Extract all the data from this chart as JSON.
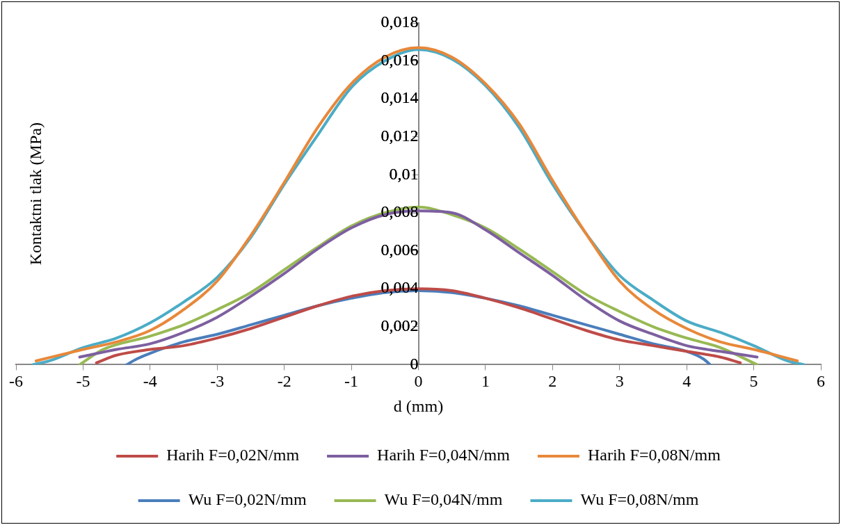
{
  "chart_data": {
    "type": "line",
    "xlabel": "d (mm)",
    "ylabel": "Kontaktni tlak (MPa)",
    "xlim": [
      -6,
      6
    ],
    "xticks": [
      -6,
      -5,
      -4,
      -3,
      -2,
      -1,
      0,
      1,
      2,
      3,
      4,
      5,
      6
    ],
    "ylim": [
      0,
      0.018
    ],
    "yticks": [
      {
        "value": 0,
        "label": "0"
      },
      {
        "value": 0.002,
        "label": "0,002"
      },
      {
        "value": 0.004,
        "label": "0,004"
      },
      {
        "value": 0.006,
        "label": "0,006"
      },
      {
        "value": 0.008,
        "label": "0,008"
      },
      {
        "value": 0.01,
        "label": "0,01"
      },
      {
        "value": 0.012,
        "label": "0,012"
      },
      {
        "value": 0.014,
        "label": "0,014"
      },
      {
        "value": 0.016,
        "label": "0,016"
      },
      {
        "value": 0.018,
        "label": "0,018"
      }
    ],
    "grid": false,
    "legend": "bottom",
    "marker": "none",
    "line_style": "solid",
    "series": [
      {
        "name": "Harih F=0,02N/mm",
        "color": "#be4b48",
        "x": [
          -4.8,
          -4.5,
          -4,
          -3.5,
          -3,
          -2.5,
          -2,
          -1.5,
          -1,
          -0.5,
          0,
          0.5,
          1,
          1.5,
          2,
          2.5,
          3,
          3.5,
          4,
          4.5,
          4.8
        ],
        "values": [
          0.0001,
          0.0005,
          0.0008,
          0.001,
          0.0014,
          0.0019,
          0.0025,
          0.0031,
          0.0036,
          0.0039,
          0.004,
          0.0039,
          0.0035,
          0.003,
          0.0024,
          0.0018,
          0.0013,
          0.001,
          0.0007,
          0.0004,
          0.0001
        ]
      },
      {
        "name": "Harih F=0,04N/mm",
        "color": "#7d5fa0",
        "x": [
          -5.05,
          -4.5,
          -4,
          -3.5,
          -3,
          -2.5,
          -2,
          -1.5,
          -1,
          -0.5,
          0,
          0.5,
          1,
          1.5,
          2,
          2.5,
          3,
          3.5,
          4,
          4.5,
          5.05
        ],
        "values": [
          0.0004,
          0.0008,
          0.0011,
          0.0017,
          0.0025,
          0.0036,
          0.0048,
          0.0061,
          0.0072,
          0.0079,
          0.0081,
          0.008,
          0.0071,
          0.0059,
          0.0047,
          0.0034,
          0.0023,
          0.0016,
          0.001,
          0.0007,
          0.0004
        ]
      },
      {
        "name": "Harih F=0,08N/mm",
        "color": "#e8883a",
        "x": [
          -5.7,
          -5,
          -4.5,
          -4,
          -3.5,
          -3,
          -2.5,
          -2,
          -1.5,
          -1,
          -0.5,
          0,
          0.5,
          1,
          1.5,
          2,
          2.5,
          3,
          3.5,
          4,
          4.5,
          5,
          5.65
        ],
        "values": [
          0.0002,
          0.0008,
          0.0012,
          0.0018,
          0.0029,
          0.0044,
          0.0068,
          0.0096,
          0.0125,
          0.0148,
          0.0162,
          0.0167,
          0.0162,
          0.0148,
          0.0127,
          0.0097,
          0.0069,
          0.0044,
          0.0029,
          0.0019,
          0.0012,
          0.0008,
          0.0002
        ]
      },
      {
        "name": "Wu F=0,02N/mm",
        "color": "#4a7ebb",
        "x": [
          -4.35,
          -4.2,
          -4,
          -3.5,
          -3,
          -2.5,
          -2,
          -1.5,
          -1,
          -0.5,
          0,
          0.5,
          1,
          1.5,
          2,
          2.5,
          3,
          3.5,
          4,
          4.25,
          4.35
        ],
        "values": [
          0,
          0.0003,
          0.0006,
          0.0012,
          0.0016,
          0.0021,
          0.0026,
          0.0031,
          0.0035,
          0.0038,
          0.0039,
          0.0038,
          0.0035,
          0.0031,
          0.0026,
          0.0021,
          0.0016,
          0.0011,
          0.0007,
          0.0003,
          0
        ]
      },
      {
        "name": "Wu F=0,04N/mm",
        "color": "#98b954",
        "x": [
          -5.05,
          -4.7,
          -4,
          -3.5,
          -3,
          -2.5,
          -2,
          -1.5,
          -1,
          -0.5,
          0,
          0.5,
          1,
          1.5,
          2,
          2.5,
          3,
          3.5,
          4,
          4.5,
          5.05
        ],
        "values": [
          0,
          0.0008,
          0.0015,
          0.0021,
          0.0029,
          0.0038,
          0.005,
          0.0062,
          0.0073,
          0.008,
          0.0083,
          0.0079,
          0.0072,
          0.0061,
          0.0049,
          0.0037,
          0.0028,
          0.002,
          0.0014,
          0.0009,
          0
        ]
      },
      {
        "name": "Wu F=0,08N/mm",
        "color": "#4bacc6",
        "x": [
          -5.75,
          -5.5,
          -5,
          -4.5,
          -4,
          -3.5,
          -3,
          -2.5,
          -2,
          -1.5,
          -1,
          -0.5,
          0,
          0.5,
          1,
          1.5,
          2,
          2.5,
          3,
          3.5,
          4,
          4.5,
          5,
          5.5,
          5.75
        ],
        "values": [
          0,
          0.0002,
          0.0009,
          0.0014,
          0.0022,
          0.0033,
          0.0046,
          0.0067,
          0.0095,
          0.0121,
          0.0146,
          0.016,
          0.0166,
          0.0161,
          0.0147,
          0.0125,
          0.0095,
          0.0069,
          0.0047,
          0.0034,
          0.0023,
          0.0017,
          0.001,
          0.0002,
          0
        ]
      }
    ]
  }
}
